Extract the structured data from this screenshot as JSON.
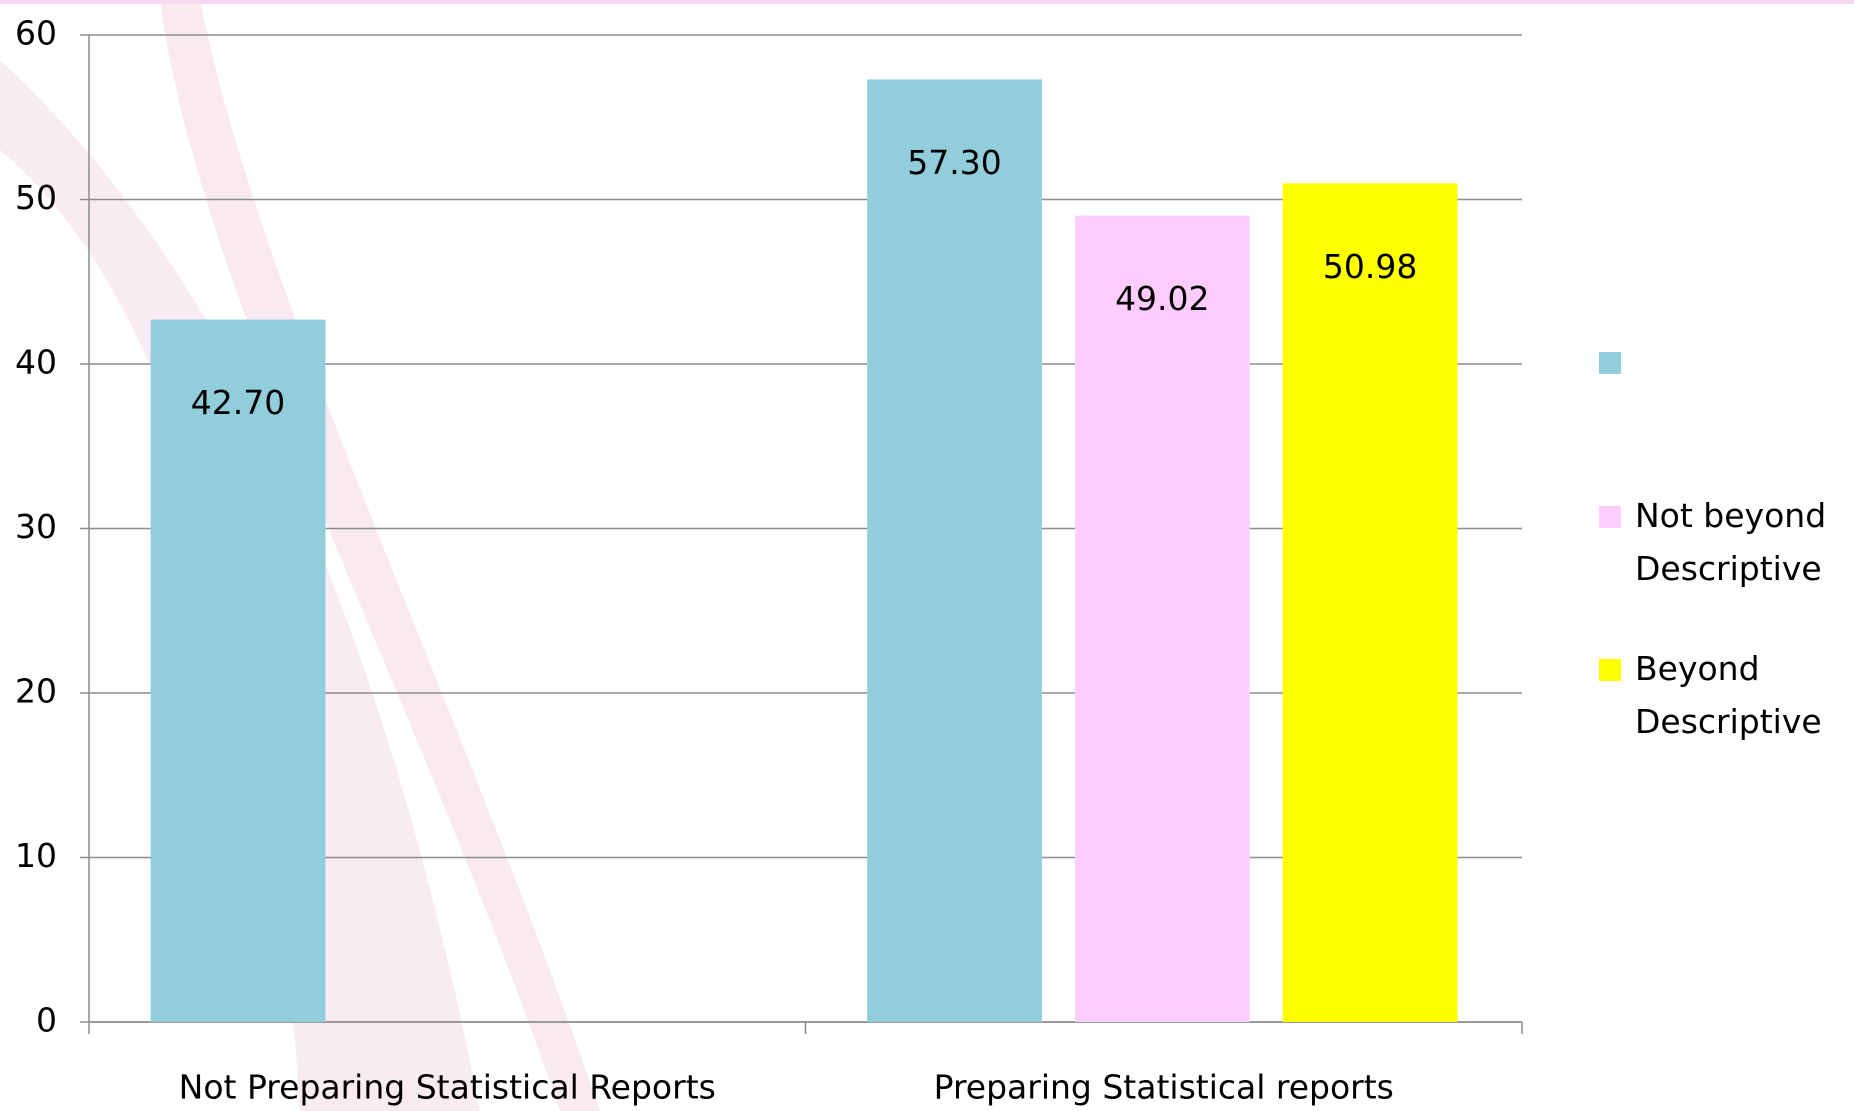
{
  "chart_data": {
    "type": "bar",
    "categories": [
      "Not Preparing Statistical Reports",
      "Preparing Statistical reports"
    ],
    "series": [
      {
        "name": null,
        "color": "#92cddc",
        "values": [
          42.7,
          57.3
        ],
        "value_labels": [
          "42.70",
          "57.30"
        ]
      },
      {
        "name": "Not beyond Descriptive",
        "color": "#ffccff",
        "values": [
          null,
          49.02
        ],
        "value_labels": [
          null,
          "49.02"
        ]
      },
      {
        "name": "Beyond Descriptive",
        "color": "#ffff00",
        "values": [
          null,
          50.98
        ],
        "value_labels": [
          null,
          "50.98"
        ]
      }
    ],
    "ylim": [
      0,
      60
    ],
    "yticks": [
      0,
      10,
      20,
      30,
      40,
      50,
      60
    ],
    "grid": true,
    "legend": "right"
  }
}
